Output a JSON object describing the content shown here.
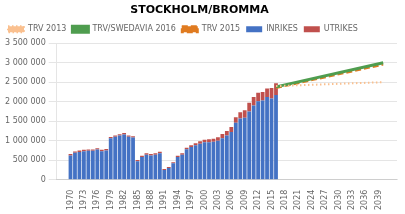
{
  "chart_data": {
    "type": "bar",
    "title": "STOCKHOLM/BROMMA",
    "stacked": true,
    "x": [
      1970,
      1971,
      1972,
      1973,
      1974,
      1975,
      1976,
      1977,
      1978,
      1979,
      1980,
      1981,
      1982,
      1983,
      1984,
      1985,
      1986,
      1987,
      1988,
      1989,
      1990,
      1991,
      1992,
      1993,
      1994,
      1995,
      1996,
      1997,
      1998,
      1999,
      2000,
      2001,
      2002,
      2003,
      2004,
      2005,
      2006,
      2007,
      2008,
      2009,
      2010,
      2011,
      2012,
      2013,
      2014,
      2015,
      2016
    ],
    "series": [
      {
        "name": "INRIKES",
        "type": "bar",
        "color": "#4472c4",
        "values": [
          620000,
          690000,
          710000,
          730000,
          740000,
          740000,
          770000,
          730000,
          750000,
          1060000,
          1100000,
          1130000,
          1160000,
          1100000,
          1080000,
          470000,
          580000,
          640000,
          620000,
          640000,
          680000,
          250000,
          300000,
          420000,
          580000,
          640000,
          780000,
          840000,
          880000,
          920000,
          960000,
          960000,
          970000,
          1000000,
          1060000,
          1130000,
          1220000,
          1460000,
          1570000,
          1590000,
          1750000,
          1900000,
          2010000,
          2030000,
          2120000,
          2080000,
          2170000
        ]
      },
      {
        "name": "UTRIKES",
        "type": "bar",
        "color": "#c0504d",
        "values": [
          35000,
          35000,
          35000,
          35000,
          35000,
          35000,
          35000,
          35000,
          35000,
          35000,
          35000,
          35000,
          35000,
          35000,
          35000,
          35000,
          35000,
          35000,
          35000,
          35000,
          35000,
          25000,
          25000,
          25000,
          35000,
          35000,
          35000,
          45000,
          55000,
          65000,
          65000,
          75000,
          80000,
          85000,
          110000,
          120000,
          130000,
          140000,
          160000,
          190000,
          220000,
          220000,
          220000,
          220000,
          220000,
          270000,
          300000
        ]
      },
      {
        "name": "TRV 2013",
        "type": "line",
        "color": "#fac08f",
        "line_style": "dotted",
        "x": [
          2016,
          2040
        ],
        "values": [
          2400000,
          2500000
        ]
      },
      {
        "name": "TRV/SWEDAVIA 2016",
        "type": "line",
        "color": "#4f9d4f",
        "line_style": "solid",
        "x": [
          2016,
          2040
        ],
        "values": [
          2380000,
          3000000
        ]
      },
      {
        "name": "TRV 2015",
        "type": "line",
        "color": "#e07b20",
        "line_style": "dashed",
        "x": [
          2016,
          2040
        ],
        "values": [
          2350000,
          2950000
        ]
      }
    ],
    "xlim": [
      1968.5,
      2041.5
    ],
    "xticks": [
      1970,
      1973,
      1976,
      1979,
      1982,
      1985,
      1988,
      1991,
      1994,
      1997,
      2000,
      2003,
      2006,
      2009,
      2012,
      2015,
      2018,
      2021,
      2024,
      2027,
      2030,
      2033,
      2036,
      2039
    ],
    "ylim": [
      0,
      3500000
    ],
    "yticks": [
      0,
      {
        "value": 500000,
        "label": "500 000"
      },
      {
        "value": 1000000,
        "label": "1 000 000"
      },
      {
        "value": 1500000,
        "label": "1 500 000"
      },
      {
        "value": 2000000,
        "label": "2 000 000"
      },
      {
        "value": 2500000,
        "label": "2 500 000"
      },
      {
        "value": 3000000,
        "label": "3 000 000"
      },
      {
        "value": 3500000,
        "label": "3 500 000"
      }
    ],
    "grid": "y",
    "legend": "upper left"
  }
}
